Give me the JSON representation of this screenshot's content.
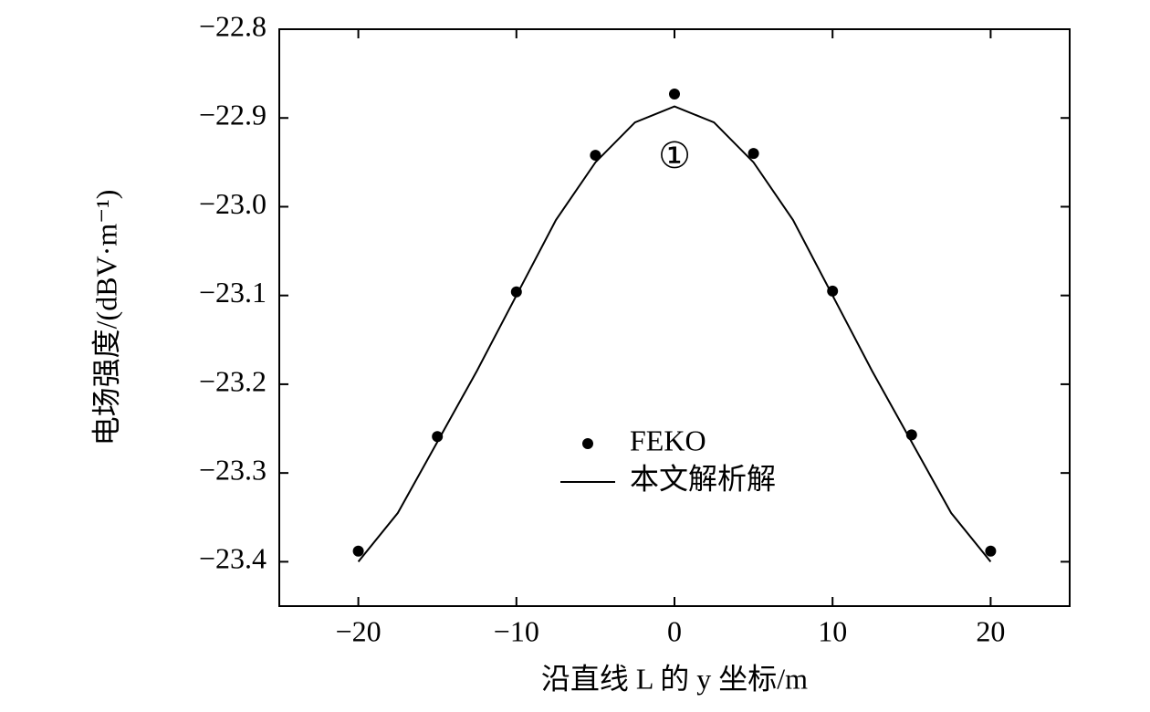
{
  "chart_data": {
    "type": "line",
    "x_label": "沿直线 L 的 y 坐标/m",
    "y_label": "电场强度/(dBV·m⁻¹)",
    "annotation": "①",
    "xlim": [
      -25,
      25
    ],
    "xticks": [
      {
        "value": -20,
        "label": "−20"
      },
      {
        "value": -10,
        "label": "−10"
      },
      0,
      10,
      20
    ],
    "ylim": [
      -23.45,
      -22.8
    ],
    "yticks": [
      {
        "value": -22.8,
        "label": "−22.8"
      },
      {
        "value": -22.9,
        "label": "−22.9"
      },
      {
        "value": -23.0,
        "label": "−23.0"
      },
      {
        "value": -23.1,
        "label": "−23.1"
      },
      {
        "value": -23.2,
        "label": "−23.2"
      },
      {
        "value": -23.3,
        "label": "−23.3"
      },
      {
        "value": -23.4,
        "label": "−23.4"
      }
    ],
    "legend": "center",
    "series": [
      {
        "name": "FEKO",
        "style": "markers",
        "color": "#000000",
        "x": [
          -20,
          -15,
          -10,
          -5,
          0,
          5,
          10,
          15,
          20
        ],
        "values": [
          -23.388,
          -23.259,
          -23.096,
          -22.942,
          -22.873,
          -22.94,
          -23.095,
          -23.257,
          -23.388
        ]
      },
      {
        "name": "本文解析解",
        "style": "line",
        "color": "#000000",
        "x": [
          -20,
          -17.5,
          -15,
          -12.5,
          -10,
          -7.5,
          -5,
          -2.5,
          0,
          2.5,
          5,
          7.5,
          10,
          12.5,
          15,
          17.5,
          20
        ],
        "values": [
          -23.4,
          -23.345,
          -23.265,
          -23.185,
          -23.1,
          -23.015,
          -22.95,
          -22.905,
          -22.887,
          -22.905,
          -22.95,
          -23.015,
          -23.1,
          -23.185,
          -23.265,
          -23.345,
          -23.4
        ]
      }
    ]
  }
}
